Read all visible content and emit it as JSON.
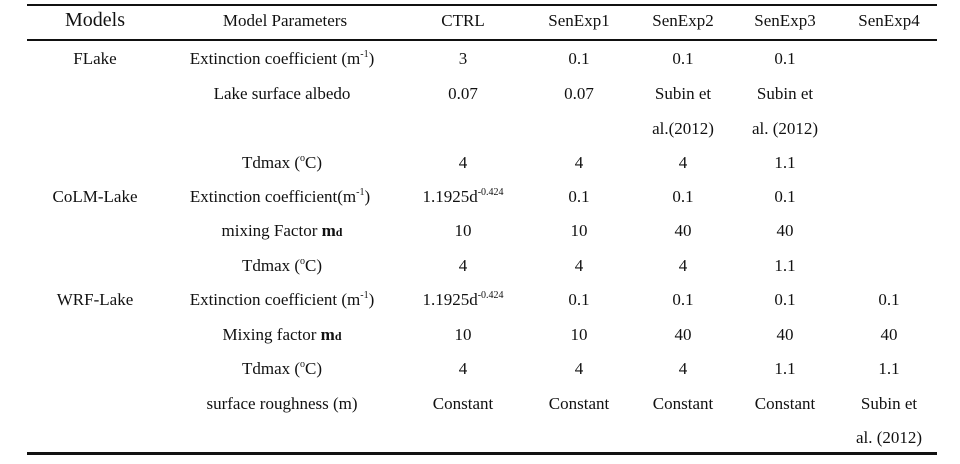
{
  "headers": {
    "models": "Models",
    "params": "Model Parameters",
    "ctrl": "CTRL",
    "s1": "SenExp1",
    "s2": "SenExp2",
    "s3": "SenExp3",
    "s4": "SenExp4"
  },
  "model_labels": {
    "flake": "FLake",
    "colm": "CoLM-Lake",
    "wrf": "WRF-Lake"
  },
  "rows": [
    {
      "param": "Extinction coefficient (m",
      "param_sup": "-1",
      "param_tail": ")",
      "ctrl": "3",
      "s1": "0.1",
      "s2": "0.1",
      "s3": "0.1",
      "s4": ""
    },
    {
      "param": "Lake surface albedo",
      "ctrl": "0.07",
      "s1": "0.07",
      "s2": "Subin et",
      "s3": "Subin et",
      "s4": ""
    },
    {
      "s2": "al.(2012)",
      "s3": "al. (2012)"
    },
    {
      "param": "Tdmax (",
      "param_sup": "o",
      "param_tail": "C)",
      "ctrl": "4",
      "s1": "4",
      "s2": "4",
      "s3": "1.1",
      "s4": ""
    },
    {
      "param": "Extinction coefficient(m",
      "param_sup": "-1",
      "param_tail": ")",
      "ctrl": "1.1925d",
      "ctrl_sup": "-0.424",
      "s1": "0.1",
      "s2": "0.1",
      "s3": "0.1",
      "s4": ""
    },
    {
      "param": "mixing Factor ",
      "param_bold": "m",
      "param_sub": "d",
      "ctrl": "10",
      "s1": "10",
      "s2": "40",
      "s3": "40",
      "s4": ""
    },
    {
      "param": "Tdmax (",
      "param_sup": "o",
      "param_tail": "C)",
      "ctrl": "4",
      "s1": "4",
      "s2": "4",
      "s3": "1.1",
      "s4": ""
    },
    {
      "param": "Extinction coefficient (m",
      "param_sup": "-1",
      "param_tail": ")",
      "ctrl": "1.1925d",
      "ctrl_sup": "-0.424",
      "s1": "0.1",
      "s2": "0.1",
      "s3": "0.1",
      "s4": "0.1"
    },
    {
      "param": "Mixing factor ",
      "param_bold": "m",
      "param_sub": "d",
      "ctrl": "10",
      "s1": "10",
      "s2": "40",
      "s3": "40",
      "s4": "40"
    },
    {
      "param": "Tdmax (",
      "param_sup": "o",
      "param_tail": "C)",
      "ctrl": "4",
      "s1": "4",
      "s2": "4",
      "s3": "1.1",
      "s4": "1.1"
    },
    {
      "param": "surface roughness (m)",
      "ctrl": "Constant",
      "s1": "Constant",
      "s2": "Constant",
      "s3": "Constant",
      "s4": "Subin et"
    },
    {
      "s4": "al. (2012)"
    }
  ]
}
